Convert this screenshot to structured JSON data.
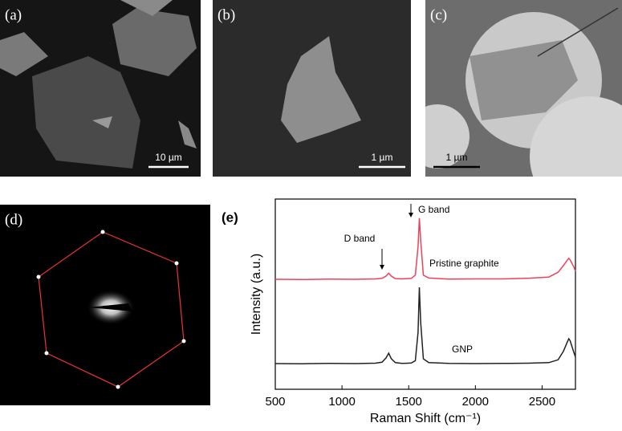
{
  "panels": [
    {
      "label": "(a)",
      "scale_bar": "10 µm"
    },
    {
      "label": "(b)",
      "scale_bar": "1 µm"
    },
    {
      "label": "(c)",
      "scale_bar": "1 µm"
    },
    {
      "label": "(d)"
    }
  ],
  "chart_data": {
    "type": "line",
    "panel_label": "(e)",
    "xlabel": "Raman Shift (cm⁻¹)",
    "ylabel": "Intensity (a.u.)",
    "x": [
      500,
      700,
      900,
      1100,
      1250,
      1300,
      1330,
      1350,
      1370,
      1400,
      1450,
      1520,
      1550,
      1570,
      1580,
      1590,
      1610,
      1650,
      1800,
      2000,
      2200,
      2400,
      2550,
      2620,
      2660,
      2690,
      2700,
      2710,
      2740,
      2750
    ],
    "series": [
      {
        "name": "Pristine graphite",
        "color": "#f0405a",
        "values": [
          57.8,
          57.7,
          57.9,
          57.8,
          58,
          58.3,
          59.5,
          61,
          59.5,
          58.2,
          58,
          58.3,
          60,
          75,
          90,
          78,
          60,
          58.5,
          57.9,
          58,
          58,
          58.4,
          59,
          61.5,
          65,
          68,
          68.8,
          68,
          64,
          62
        ]
      },
      {
        "name": "GNP",
        "color": "#222222",
        "values": [
          13.5,
          13.4,
          13.6,
          13.5,
          13.7,
          14.2,
          16.5,
          19,
          16,
          14,
          13.6,
          13.8,
          15,
          30,
          53.6,
          35,
          16,
          14,
          13.6,
          13.5,
          13.6,
          13.7,
          14,
          15.5,
          20,
          25,
          26.6,
          25.5,
          19,
          17
        ]
      }
    ],
    "annotations": [
      "G band",
      "D band"
    ],
    "xlim": [
      500,
      2750
    ],
    "xticks": [
      500,
      1000,
      1500,
      2000,
      2500
    ],
    "ylim": [
      0,
      100
    ]
  }
}
